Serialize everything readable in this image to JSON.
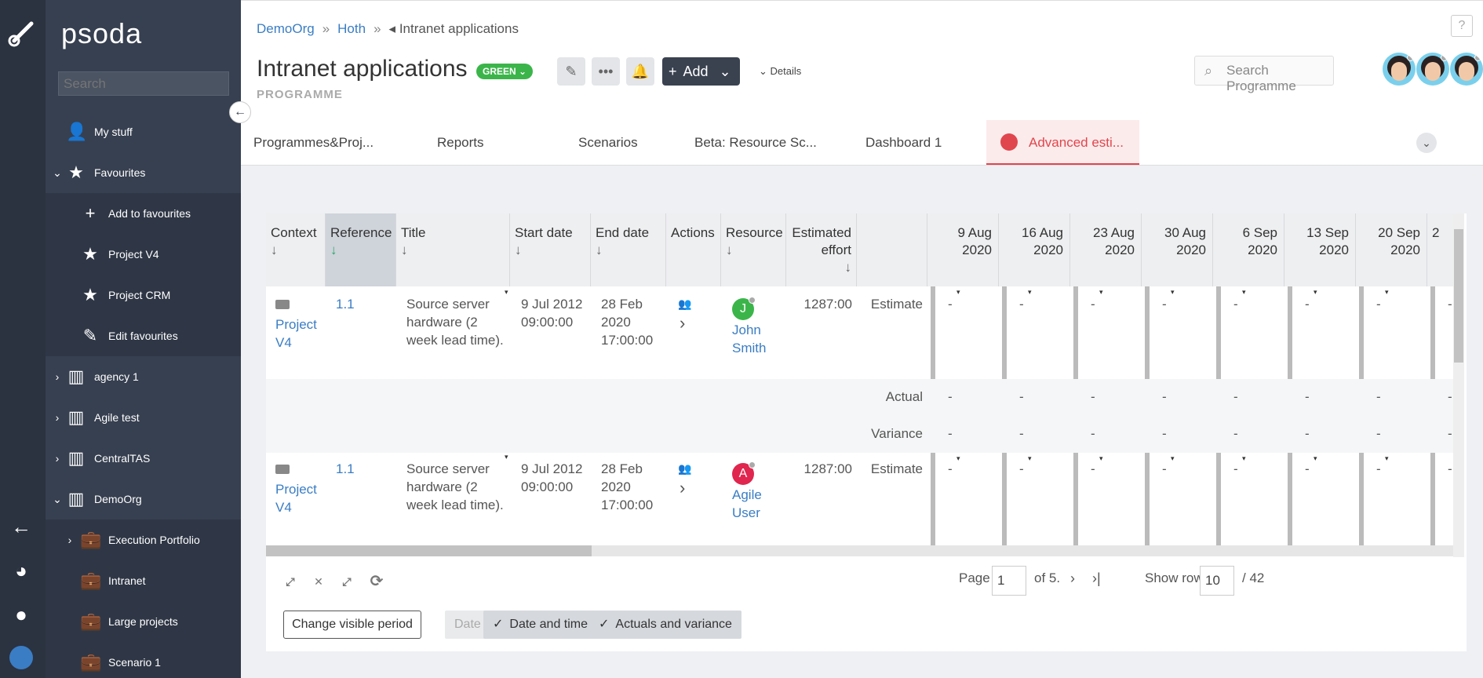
{
  "sidebar": {
    "brand": "psoda",
    "search_placeholder": "Search",
    "items": [
      {
        "label": "My stuff",
        "icon": "user-icon"
      },
      {
        "label": "Favourites",
        "icon": "star-icon"
      },
      {
        "label": "Add to favourites",
        "icon": "plus-icon"
      },
      {
        "label": "Project V4",
        "icon": "star-icon"
      },
      {
        "label": "Project CRM",
        "icon": "star-icon"
      },
      {
        "label": "Edit favourites",
        "icon": "pencil-icon"
      },
      {
        "label": "agency 1",
        "icon": "building-icon"
      },
      {
        "label": "Agile test",
        "icon": "building-icon"
      },
      {
        "label": "CentralTAS",
        "icon": "building-icon"
      },
      {
        "label": "DemoOrg",
        "icon": "building-icon"
      },
      {
        "label": "Execution Portfolio",
        "icon": "briefcase-icon"
      },
      {
        "label": "Intranet",
        "icon": "briefcase-icon"
      },
      {
        "label": "Large projects",
        "icon": "briefcase-icon"
      },
      {
        "label": "Scenario 1",
        "icon": "briefcase-icon"
      }
    ]
  },
  "header": {
    "breadcrumb": [
      "DemoOrg",
      "Hoth",
      "Intranet applications"
    ],
    "title": "Intranet applications",
    "status": "GREEN",
    "subtitle": "PROGRAMME",
    "add_label": "Add",
    "details_label": "Details",
    "search_placeholder": "Search Programme",
    "help": "?"
  },
  "tabs": [
    "Programmes&Proj...",
    "Reports",
    "Scenarios",
    "Beta: Resource Sc...",
    "Dashboard 1",
    "Advanced esti..."
  ],
  "grid": {
    "columns": [
      {
        "label": "Context",
        "arrow": "↓"
      },
      {
        "label": "Reference",
        "arrow": "↓"
      },
      {
        "label": "Title",
        "arrow": "↓"
      },
      {
        "label": "Start date",
        "arrow": "↓"
      },
      {
        "label": "End date",
        "arrow": "↓"
      },
      {
        "label": "Actions",
        "arrow": ""
      },
      {
        "label": "Resource",
        "arrow": "↓"
      },
      {
        "label": "Estimated effort",
        "arrow": "↓"
      }
    ],
    "date_columns": [
      [
        "9 Aug",
        "2020"
      ],
      [
        "16 Aug",
        "2020"
      ],
      [
        "23 Aug",
        "2020"
      ],
      [
        "30 Aug",
        "2020"
      ],
      [
        "6 Sep",
        "2020"
      ],
      [
        "13 Sep",
        "2020"
      ],
      [
        "20 Sep",
        "2020"
      ],
      [
        "2",
        ""
      ]
    ],
    "rows": [
      {
        "context": "Project V4",
        "reference": "1.1",
        "title": "Source server hardware (2 week lead time).",
        "start": "9 Jul 2012 09:00:00",
        "end": "28 Feb 2020 17:00:00",
        "resource": "John Smith",
        "resource_initial": "J",
        "resource_color": "#3bb54a",
        "effort": "1287:00"
      },
      {
        "context": "Project V4",
        "reference": "1.1",
        "title": "Source server hardware (2 week lead time).",
        "start": "9 Jul 2012 09:00:00",
        "end": "28 Feb 2020 17:00:00",
        "resource": "Agile User",
        "resource_initial": "A",
        "resource_color": "#e0264e",
        "effort": "1287:00"
      }
    ],
    "labels": {
      "estimate": "Estimate",
      "actual": "Actual",
      "variance": "Variance",
      "dash": "-"
    }
  },
  "footer": {
    "page_label": "Page",
    "page_value": "1",
    "of_label": "of 5.",
    "show_rows_label": "Show rows:",
    "rows_value": "10",
    "total": "/ 42",
    "change_period": "Change visible period",
    "date_toggle": "Date",
    "date_time_toggle": "Date and time",
    "actuals_toggle": "Actuals and variance",
    "export_icons": [
      "csv",
      "xls",
      "csv",
      "refresh"
    ]
  }
}
